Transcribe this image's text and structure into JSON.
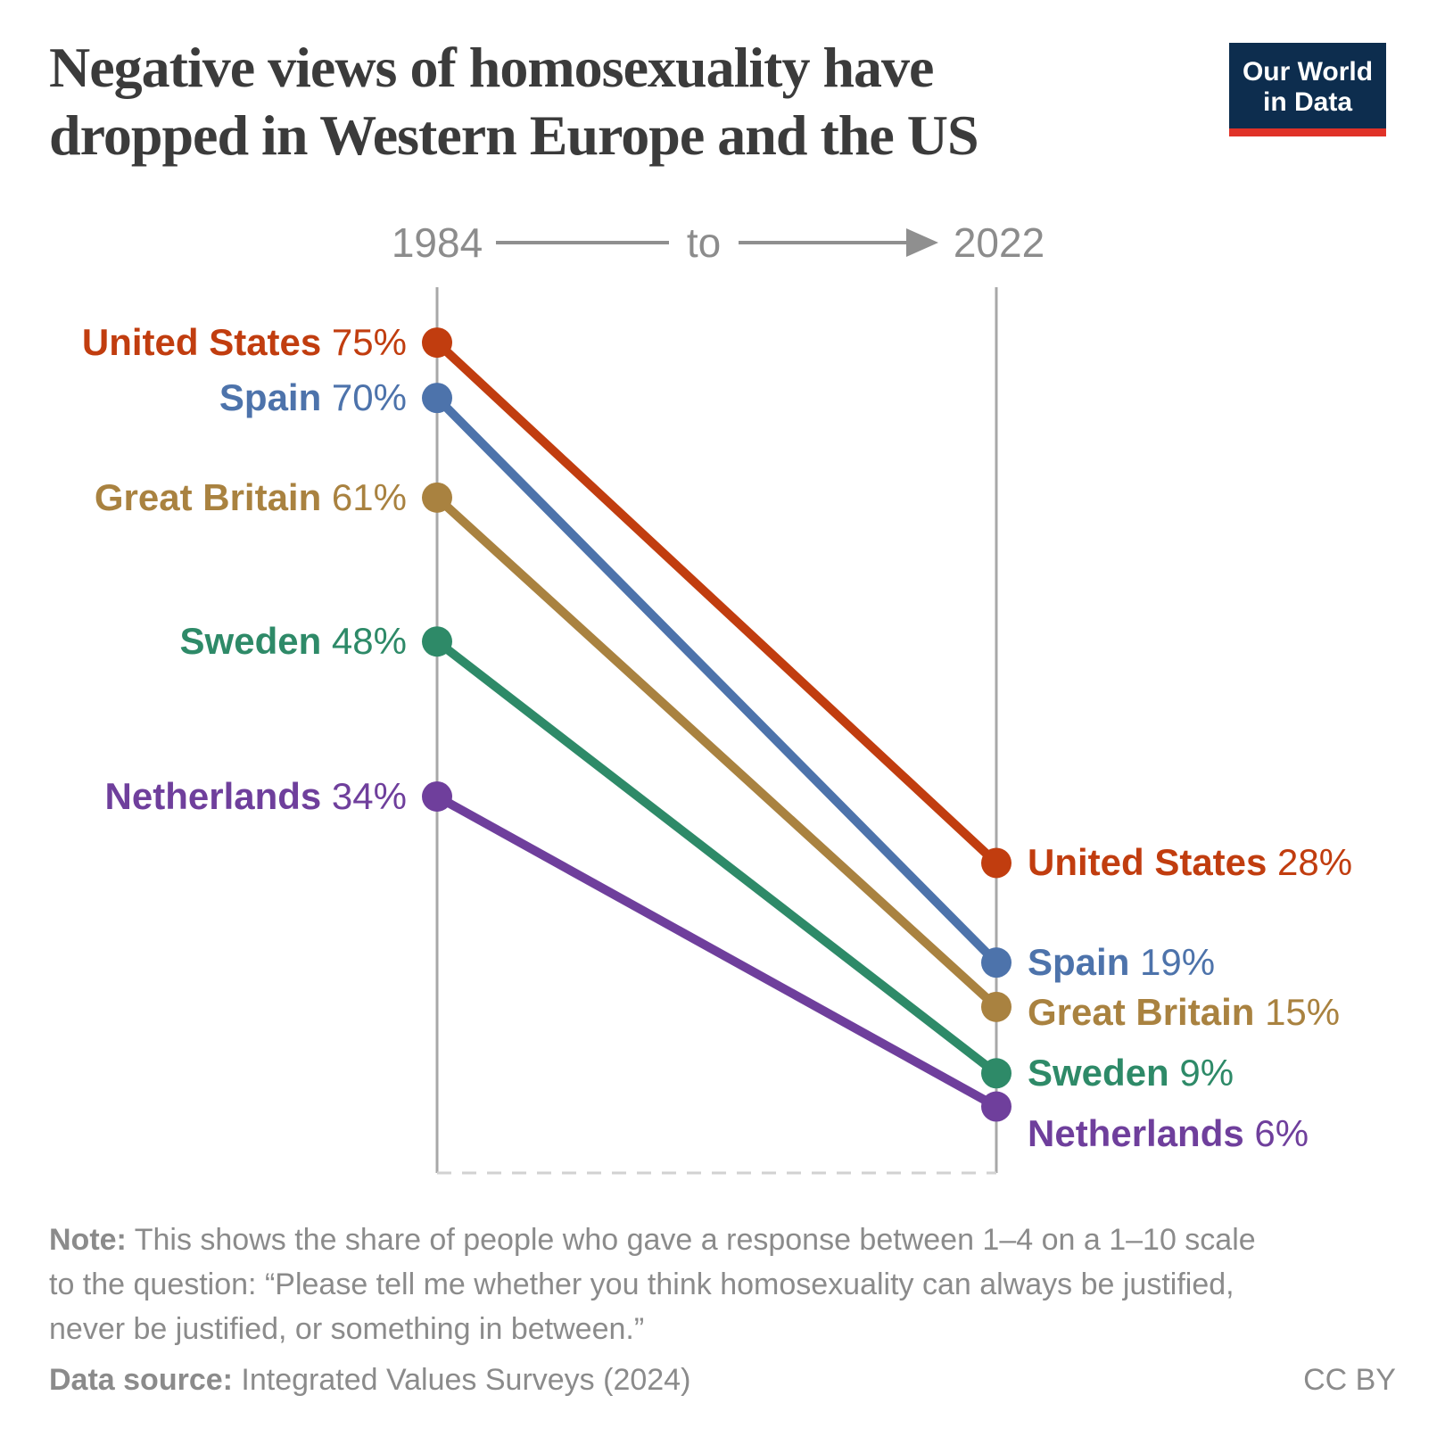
{
  "title_lines": {
    "line1": "Negative views of homosexuality have",
    "line2": "dropped in Western Europe and the US"
  },
  "logo": {
    "line1": "Our World",
    "line2": "in Data"
  },
  "header": {
    "left_year": "1984",
    "connector": "to",
    "right_year": "2022"
  },
  "chart_data": {
    "type": "slope",
    "x_categories": [
      "1984",
      "2022"
    ],
    "ylim": [
      0,
      80
    ],
    "unit": "%",
    "grid": false,
    "series": [
      {
        "name": "United States",
        "color": "#c13d0f",
        "values": [
          75,
          28
        ],
        "right_label_dy": 0
      },
      {
        "name": "Spain",
        "color": "#4d73ab",
        "values": [
          70,
          19
        ],
        "right_label_dy": 0
      },
      {
        "name": "Great Britain",
        "color": "#a98240",
        "values": [
          61,
          15
        ],
        "right_label_dy": 6
      },
      {
        "name": "Sweden",
        "color": "#2e8a68",
        "values": [
          48,
          9
        ],
        "right_label_dy": 0
      },
      {
        "name": "Netherlands",
        "color": "#6f3f9c",
        "values": [
          34,
          6
        ],
        "right_label_dy": 30
      }
    ]
  },
  "note": {
    "label": "Note:",
    "line1": " This shows the share of people who gave a response between 1–4 on a 1–10 scale",
    "line2": "to the question: “Please tell me whether you think homosexuality can always be justified,",
    "line3": "never be justified, or something in between.”"
  },
  "source": {
    "label": "Data source:",
    "text": " Integrated Values Surveys (2024)",
    "license": "CC BY"
  }
}
